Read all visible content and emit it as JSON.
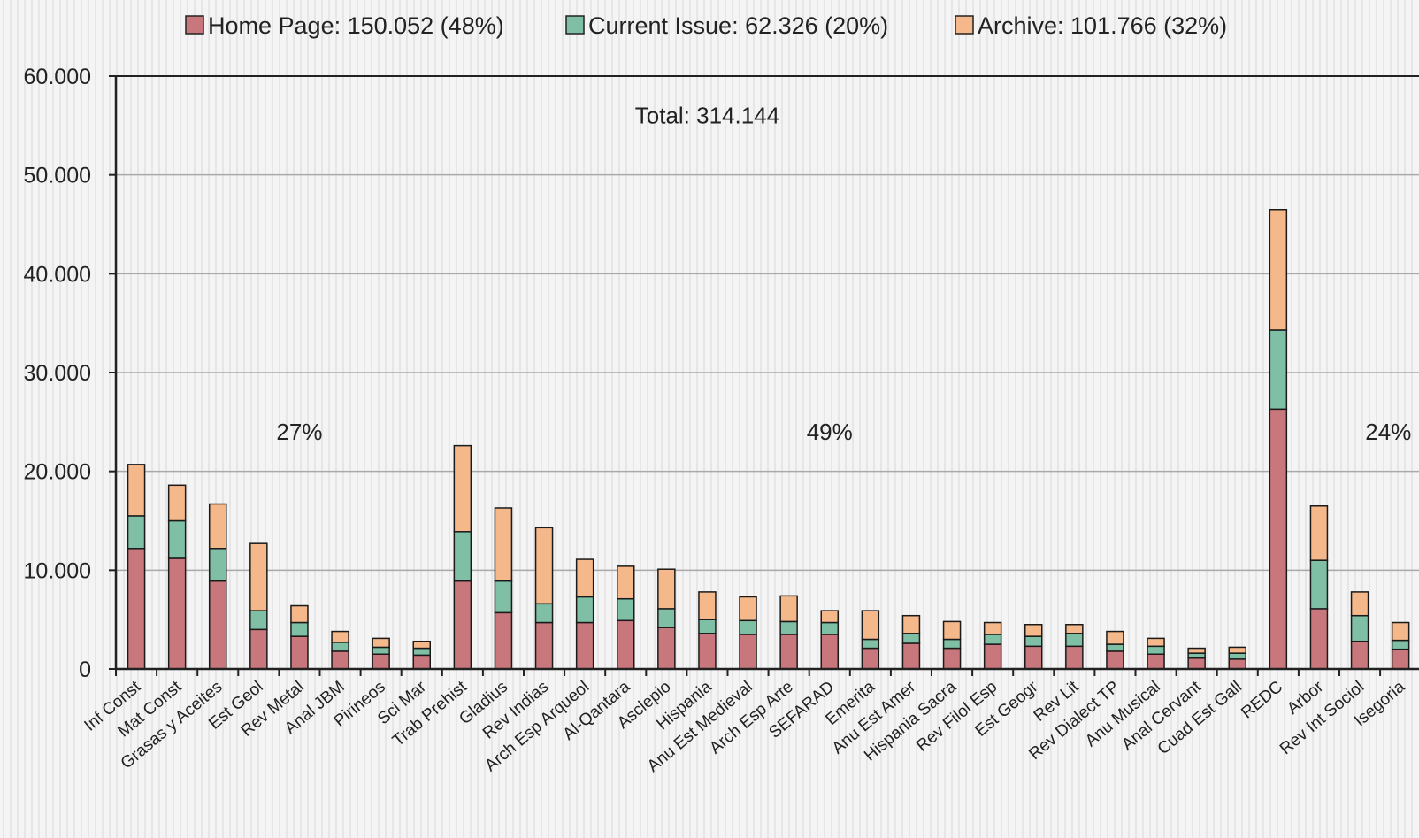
{
  "chart_data": {
    "type": "bar",
    "stacked": true,
    "legend_position": "top",
    "grid": true,
    "ylim": [
      0,
      60000
    ],
    "yticks": [
      {
        "value": 0,
        "label": "0"
      },
      {
        "value": 10000,
        "label": "10.000"
      },
      {
        "value": 20000,
        "label": "20.000"
      },
      {
        "value": 30000,
        "label": "30.000"
      },
      {
        "value": 40000,
        "label": "40.000"
      },
      {
        "value": 50000,
        "label": "50.000"
      },
      {
        "value": 60000,
        "label": "60.000"
      }
    ],
    "categories": [
      "Inf Const",
      "Mat Const",
      "Grasas y Aceites",
      "Est Geol",
      "Rev Metal",
      "Anal JBM",
      "Pirineos",
      "Sci Mar",
      "Trab Prehist",
      "Gladius",
      "Rev Indias",
      "Arch Esp Arqueol",
      "Al-Qantara",
      "Asclepio",
      "Hispania",
      "Anu Est Medieval",
      "Arch Esp Arte",
      "SEFARAD",
      "Emerita",
      "Anu Est  Amer",
      "Hispania Sacra",
      "Rev Filol Esp",
      "Est Geogr",
      "Rev Lit",
      "Rev Dialect TP",
      "Anu Musical",
      "Anal Cervant",
      "Cuad Est Gall",
      "REDC",
      "Arbor",
      "Rev Int Sociol",
      "Isegoria"
    ],
    "series": [
      {
        "name": "Home Page",
        "legend": "Home Page: 150.052 (48%)",
        "color": "#c8787c",
        "values": [
          12200,
          11200,
          8900,
          4000,
          3300,
          1800,
          1500,
          1400,
          8900,
          5700,
          4700,
          4700,
          4900,
          4200,
          3600,
          3500,
          3500,
          3500,
          2100,
          2600,
          2100,
          2500,
          2300,
          2300,
          1800,
          1500,
          1100,
          1000,
          26300,
          6100,
          2800,
          2000
        ]
      },
      {
        "name": "Current Issue",
        "legend": "Current Issue: 62.326 (20%)",
        "color": "#7fbfa5",
        "values": [
          3300,
          3800,
          3300,
          1900,
          1400,
          900,
          700,
          700,
          5000,
          3200,
          1900,
          2600,
          2200,
          1900,
          1400,
          1400,
          1300,
          1200,
          900,
          1000,
          900,
          1000,
          1000,
          1300,
          700,
          800,
          500,
          600,
          8000,
          4900,
          2600,
          900
        ]
      },
      {
        "name": "Archive",
        "legend": "Archive: 101.766 (32%)",
        "color": "#f5b88a",
        "values": [
          5200,
          3600,
          4500,
          6800,
          1700,
          1100,
          900,
          700,
          8700,
          7400,
          7700,
          3800,
          3300,
          4000,
          2800,
          2400,
          2600,
          1200,
          2900,
          1800,
          1800,
          1200,
          1200,
          900,
          1300,
          800,
          500,
          600,
          12200,
          5500,
          2400,
          1800
        ]
      }
    ],
    "annotations": [
      {
        "text": "Total: 314.144",
        "x_category_index": 14.0,
        "y": 56000
      },
      {
        "text": "27%",
        "x_category_index": 4.0,
        "y": 24000
      },
      {
        "text": "49%",
        "x_category_index": 17.0,
        "y": 24000
      },
      {
        "text": "24%",
        "x_category_index": 30.7,
        "y": 24000
      }
    ]
  }
}
